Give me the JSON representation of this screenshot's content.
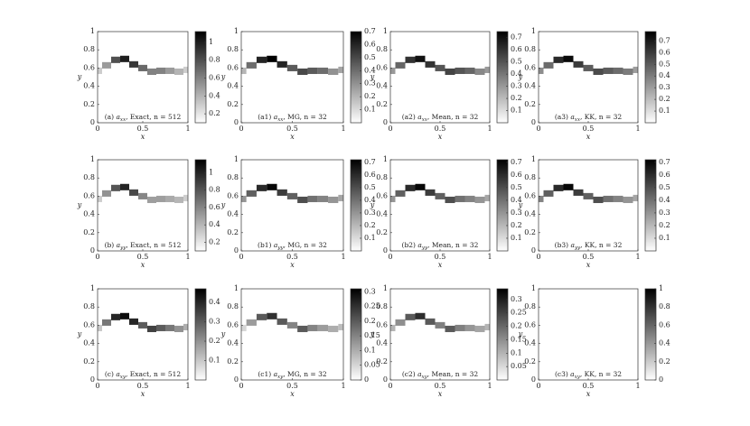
{
  "chart_data": [
    {
      "type": "heatmap",
      "title": "(a)",
      "quantity": "a",
      "subscript": "xx",
      "label": ", Exact, n = 512",
      "xlabel": "x",
      "ylabel": "y",
      "xlim": [
        0,
        1
      ],
      "ylim": [
        0,
        1
      ],
      "xticks": [
        0,
        0.5,
        1
      ],
      "yticks": [
        0,
        0.2,
        0.4,
        0.6,
        0.8,
        1
      ],
      "clim": [
        0.1,
        1.12
      ],
      "cticks": [
        0.2,
        0.4,
        0.6,
        0.8,
        1
      ],
      "x": [
        0,
        0.1,
        0.2,
        0.3,
        0.4,
        0.5,
        0.6,
        0.7,
        0.8,
        0.9,
        1
      ],
      "y": [
        0.57,
        0.63,
        0.69,
        0.7,
        0.64,
        0.6,
        0.56,
        0.57,
        0.57,
        0.56,
        0.58
      ],
      "values": [
        0.3,
        0.5,
        0.8,
        1,
        0.9,
        0.7,
        0.6,
        0.6,
        0.5,
        0.4,
        0.3
      ]
    },
    {
      "type": "heatmap",
      "title": "(a1)",
      "quantity": "a",
      "subscript": "xx",
      "label": ", MG, n = 32",
      "xlabel": "x",
      "ylabel": "y",
      "xlim": [
        0,
        1
      ],
      "ylim": [
        0,
        1
      ],
      "xticks": [
        0,
        0.5,
        1
      ],
      "yticks": [
        0,
        0.2,
        0.4,
        0.6,
        0.8,
        1
      ],
      "clim": [
        0,
        0.7
      ],
      "cticks": [
        0.1,
        0.2,
        0.3,
        0.4,
        0.5,
        0.6,
        0.7
      ],
      "x": [
        0,
        0.1,
        0.2,
        0.3,
        0.4,
        0.5,
        0.6,
        0.7,
        0.8,
        0.9,
        1
      ],
      "y": [
        0.57,
        0.63,
        0.69,
        0.7,
        0.64,
        0.6,
        0.56,
        0.57,
        0.57,
        0.56,
        0.58
      ],
      "values": [
        0.2,
        0.4,
        0.6,
        0.7,
        0.6,
        0.45,
        0.5,
        0.45,
        0.4,
        0.3,
        0.25
      ]
    },
    {
      "type": "heatmap",
      "title": "(a2)",
      "quantity": "a",
      "subscript": "xx",
      "label": ", Mean, n = 32",
      "xlabel": "x",
      "ylabel": "y",
      "xlim": [
        0,
        1
      ],
      "ylim": [
        0,
        1
      ],
      "xticks": [
        0,
        0.5,
        1
      ],
      "yticks": [
        0,
        0.2,
        0.4,
        0.6,
        0.8,
        1
      ],
      "clim": [
        0,
        0.75
      ],
      "cticks": [
        0.1,
        0.2,
        0.3,
        0.4,
        0.5,
        0.6,
        0.7
      ],
      "x": [
        0,
        0.1,
        0.2,
        0.3,
        0.4,
        0.5,
        0.6,
        0.7,
        0.8,
        0.9,
        1
      ],
      "y": [
        0.57,
        0.63,
        0.69,
        0.7,
        0.64,
        0.6,
        0.56,
        0.57,
        0.57,
        0.56,
        0.58
      ],
      "values": [
        0.3,
        0.45,
        0.6,
        0.7,
        0.6,
        0.5,
        0.55,
        0.5,
        0.45,
        0.35,
        0.3
      ]
    },
    {
      "type": "heatmap",
      "title": "(a3)",
      "quantity": "a",
      "subscript": "xx",
      "label": ", KK, n = 32",
      "xlabel": "x",
      "ylabel": "y",
      "xlim": [
        0,
        1
      ],
      "ylim": [
        0,
        1
      ],
      "xticks": [
        0,
        0.5,
        1
      ],
      "yticks": [
        0,
        0.2,
        0.4,
        0.6,
        0.8,
        1
      ],
      "clim": [
        0,
        0.78
      ],
      "cticks": [
        0.1,
        0.2,
        0.3,
        0.4,
        0.5,
        0.6,
        0.7
      ],
      "x": [
        0,
        0.1,
        0.2,
        0.3,
        0.4,
        0.5,
        0.6,
        0.7,
        0.8,
        0.9,
        1
      ],
      "y": [
        0.57,
        0.63,
        0.69,
        0.7,
        0.64,
        0.6,
        0.56,
        0.57,
        0.57,
        0.56,
        0.58
      ],
      "values": [
        0.35,
        0.45,
        0.65,
        0.75,
        0.6,
        0.5,
        0.55,
        0.5,
        0.45,
        0.4,
        0.3
      ]
    },
    {
      "type": "heatmap",
      "title": "(b)",
      "quantity": "a",
      "subscript": "yy",
      "label": ", Exact, n = 512",
      "xlabel": "x",
      "ylabel": "y",
      "xlim": [
        0,
        1
      ],
      "ylim": [
        0,
        1
      ],
      "xticks": [
        0,
        0.5,
        1
      ],
      "yticks": [
        0,
        0.2,
        0.4,
        0.6,
        0.8,
        1
      ],
      "clim": [
        0.1,
        1.15
      ],
      "cticks": [
        0.2,
        0.4,
        0.6,
        0.8,
        1
      ],
      "x": [
        0,
        0.1,
        0.2,
        0.3,
        0.4,
        0.5,
        0.6,
        0.7,
        0.8,
        0.9,
        1
      ],
      "y": [
        0.57,
        0.63,
        0.69,
        0.7,
        0.64,
        0.6,
        0.56,
        0.57,
        0.57,
        0.56,
        0.58
      ],
      "values": [
        0.3,
        0.55,
        0.8,
        1,
        0.85,
        0.6,
        0.5,
        0.5,
        0.45,
        0.4,
        0.3
      ]
    },
    {
      "type": "heatmap",
      "title": "(b1)",
      "quantity": "a",
      "subscript": "yy",
      "label": ", MG, n = 32",
      "xlabel": "x",
      "ylabel": "y",
      "xlim": [
        0,
        1
      ],
      "ylim": [
        0,
        1
      ],
      "xticks": [
        0,
        0.5,
        1
      ],
      "yticks": [
        0,
        0.2,
        0.4,
        0.6,
        0.8,
        1
      ],
      "clim": [
        0,
        0.72
      ],
      "cticks": [
        0.1,
        0.2,
        0.3,
        0.4,
        0.5,
        0.6,
        0.7
      ],
      "x": [
        0,
        0.1,
        0.2,
        0.3,
        0.4,
        0.5,
        0.6,
        0.7,
        0.8,
        0.9,
        1
      ],
      "y": [
        0.57,
        0.63,
        0.69,
        0.7,
        0.64,
        0.6,
        0.56,
        0.57,
        0.57,
        0.56,
        0.58
      ],
      "values": [
        0.3,
        0.45,
        0.6,
        0.7,
        0.55,
        0.45,
        0.5,
        0.4,
        0.35,
        0.3,
        0.25
      ]
    },
    {
      "type": "heatmap",
      "title": "(b2)",
      "quantity": "a",
      "subscript": "yy",
      "label": ", Mean, n = 32",
      "xlabel": "x",
      "ylabel": "y",
      "xlim": [
        0,
        1
      ],
      "ylim": [
        0,
        1
      ],
      "xticks": [
        0,
        0.5,
        1
      ],
      "yticks": [
        0,
        0.2,
        0.4,
        0.6,
        0.8,
        1
      ],
      "clim": [
        0,
        0.72
      ],
      "cticks": [
        0.1,
        0.2,
        0.3,
        0.4,
        0.5,
        0.6,
        0.7
      ],
      "x": [
        0,
        0.1,
        0.2,
        0.3,
        0.4,
        0.5,
        0.6,
        0.7,
        0.8,
        0.9,
        1
      ],
      "y": [
        0.57,
        0.63,
        0.69,
        0.7,
        0.64,
        0.6,
        0.56,
        0.57,
        0.57,
        0.56,
        0.58
      ],
      "values": [
        0.3,
        0.45,
        0.6,
        0.7,
        0.55,
        0.45,
        0.5,
        0.4,
        0.35,
        0.3,
        0.25
      ]
    },
    {
      "type": "heatmap",
      "title": "(b3)",
      "quantity": "a",
      "subscript": "yy",
      "label": ", KK, n = 32",
      "xlabel": "x",
      "ylabel": "y",
      "xlim": [
        0,
        1
      ],
      "ylim": [
        0,
        1
      ],
      "xticks": [
        0,
        0.5,
        1
      ],
      "yticks": [
        0,
        0.2,
        0.4,
        0.6,
        0.8,
        1
      ],
      "clim": [
        0,
        0.72
      ],
      "cticks": [
        0.1,
        0.2,
        0.3,
        0.4,
        0.5,
        0.6,
        0.7
      ],
      "x": [
        0,
        0.1,
        0.2,
        0.3,
        0.4,
        0.5,
        0.6,
        0.7,
        0.8,
        0.9,
        1
      ],
      "y": [
        0.57,
        0.63,
        0.69,
        0.7,
        0.64,
        0.6,
        0.56,
        0.57,
        0.57,
        0.56,
        0.58
      ],
      "values": [
        0.35,
        0.45,
        0.6,
        0.7,
        0.55,
        0.45,
        0.5,
        0.4,
        0.35,
        0.3,
        0.25
      ]
    },
    {
      "type": "heatmap",
      "title": "(c)",
      "quantity": "a",
      "subscript": "xy",
      "label": ", Exact, n = 512",
      "xlabel": "x",
      "ylabel": "y",
      "xlim": [
        0,
        1
      ],
      "ylim": [
        0,
        1
      ],
      "xticks": [
        0,
        0.5,
        1
      ],
      "yticks": [
        0,
        0.2,
        0.4,
        0.6,
        0.8,
        1
      ],
      "clim": [
        0,
        0.47
      ],
      "cticks": [
        0.1,
        0.2,
        0.3,
        0.4
      ],
      "x": [
        0,
        0.1,
        0.2,
        0.3,
        0.4,
        0.5,
        0.6,
        0.7,
        0.8,
        0.9,
        1
      ],
      "y": [
        0.57,
        0.63,
        0.69,
        0.7,
        0.64,
        0.6,
        0.56,
        0.57,
        0.57,
        0.56,
        0.58
      ],
      "values": [
        0.1,
        0.25,
        0.4,
        0.45,
        0.4,
        0.3,
        0.35,
        0.3,
        0.25,
        0.2,
        0.15
      ]
    },
    {
      "type": "heatmap",
      "title": "(c1)",
      "quantity": "a",
      "subscript": "xy",
      "label": ", MG, n = 32",
      "xlabel": "x",
      "ylabel": "y",
      "xlim": [
        0,
        1
      ],
      "ylim": [
        0,
        1
      ],
      "xticks": [
        0,
        0.5,
        1
      ],
      "yticks": [
        0,
        0.2,
        0.4,
        0.6,
        0.8,
        1
      ],
      "clim": [
        0,
        0.31
      ],
      "cticks": [
        0,
        0.05,
        0.1,
        0.15,
        0.2,
        0.25,
        0.3
      ],
      "x": [
        0,
        0.1,
        0.2,
        0.3,
        0.4,
        0.5,
        0.6,
        0.7,
        0.8,
        0.9,
        1
      ],
      "y": [
        0.57,
        0.63,
        0.69,
        0.7,
        0.64,
        0.6,
        0.56,
        0.57,
        0.57,
        0.56,
        0.58
      ],
      "values": [
        0.05,
        0.12,
        0.2,
        0.25,
        0.2,
        0.15,
        0.2,
        0.15,
        0.12,
        0.1,
        0.08
      ]
    },
    {
      "type": "heatmap",
      "title": "(c2)",
      "quantity": "a",
      "subscript": "xy",
      "label": ", Mean, n = 32",
      "xlabel": "x",
      "ylabel": "y",
      "xlim": [
        0,
        1
      ],
      "ylim": [
        0,
        1
      ],
      "xticks": [
        0,
        0.5,
        1
      ],
      "yticks": [
        0,
        0.2,
        0.4,
        0.6,
        0.8,
        1
      ],
      "clim": [
        0,
        0.34
      ],
      "cticks": [
        0.05,
        0.1,
        0.15,
        0.2,
        0.25,
        0.3
      ],
      "x": [
        0,
        0.1,
        0.2,
        0.3,
        0.4,
        0.5,
        0.6,
        0.7,
        0.8,
        0.9,
        1
      ],
      "y": [
        0.57,
        0.63,
        0.69,
        0.7,
        0.64,
        0.6,
        0.56,
        0.57,
        0.57,
        0.56,
        0.58
      ],
      "values": [
        0.1,
        0.15,
        0.22,
        0.28,
        0.22,
        0.17,
        0.22,
        0.17,
        0.14,
        0.12,
        0.1
      ]
    },
    {
      "type": "heatmap",
      "title": "(c3)",
      "quantity": "a",
      "subscript": "xy",
      "label": ", KK, n = 32",
      "xlabel": "x",
      "ylabel": "y",
      "xlim": [
        0,
        1
      ],
      "ylim": [
        0,
        1
      ],
      "xticks": [
        0,
        0.5,
        1
      ],
      "yticks": [
        0,
        0.2,
        0.4,
        0.6,
        0.8,
        1
      ],
      "clim": [
        0,
        1
      ],
      "cticks": [
        0,
        0.2,
        0.4,
        0.6,
        0.8,
        1
      ],
      "x": [],
      "y": [],
      "values": []
    }
  ]
}
